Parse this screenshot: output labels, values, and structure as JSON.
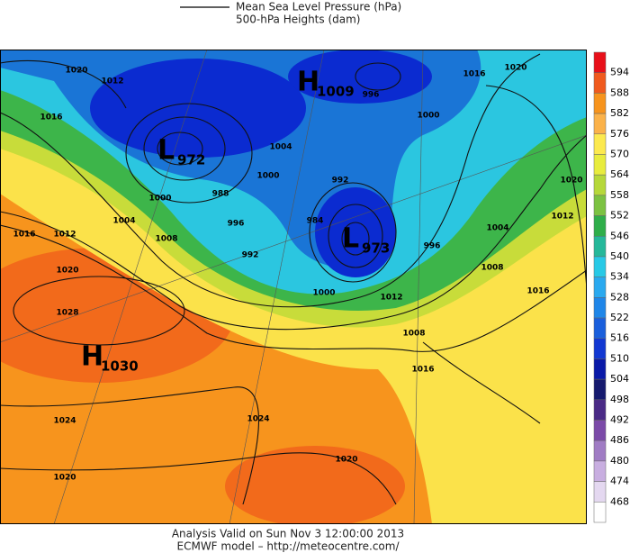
{
  "legend": {
    "pressure": "Mean Sea Level Pressure (hPa)",
    "heights": "500-hPa Heights (dam)"
  },
  "colorbar": {
    "ticks": [
      594,
      588,
      582,
      576,
      570,
      564,
      558,
      552,
      546,
      540,
      534,
      528,
      522,
      516,
      510,
      504,
      498,
      492,
      486,
      480,
      474,
      468
    ],
    "colors": [
      "#e8101a",
      "#f05a1e",
      "#f7941d",
      "#fbb24a",
      "#fce94f",
      "#e8ec3e",
      "#b6d83a",
      "#7cc242",
      "#2fae4a",
      "#25b89a",
      "#28c9e6",
      "#2aa9ef",
      "#1f86e8",
      "#1a5fdc",
      "#1238d2",
      "#0a1aa8",
      "#161a6e",
      "#4a2a86",
      "#7b4aa8",
      "#a07cc4",
      "#c8aee0",
      "#e4d8f0",
      "#ffffff"
    ]
  },
  "centers": [
    {
      "letter": "H",
      "value": 1009
    },
    {
      "letter": "L",
      "value": 972
    },
    {
      "letter": "L",
      "value": 973
    },
    {
      "letter": "H",
      "value": 1030
    }
  ],
  "isobar_labels": [
    1020,
    1012,
    1016,
    1004,
    1000,
    1008,
    1016,
    1012,
    1020,
    1028,
    1024,
    1020,
    1024,
    1020,
    988,
    996,
    992,
    1000,
    1004,
    984,
    992,
    1000,
    1012,
    1008,
    1016,
    996,
    1004,
    1008,
    1016,
    1012,
    1020,
    1016,
    1020,
    1000,
    996
  ],
  "footer": {
    "valid": "Analysis Valid on Sun Nov  3 12:00:00 2013",
    "model": "ECMWF model – http://meteocentre.com/"
  }
}
